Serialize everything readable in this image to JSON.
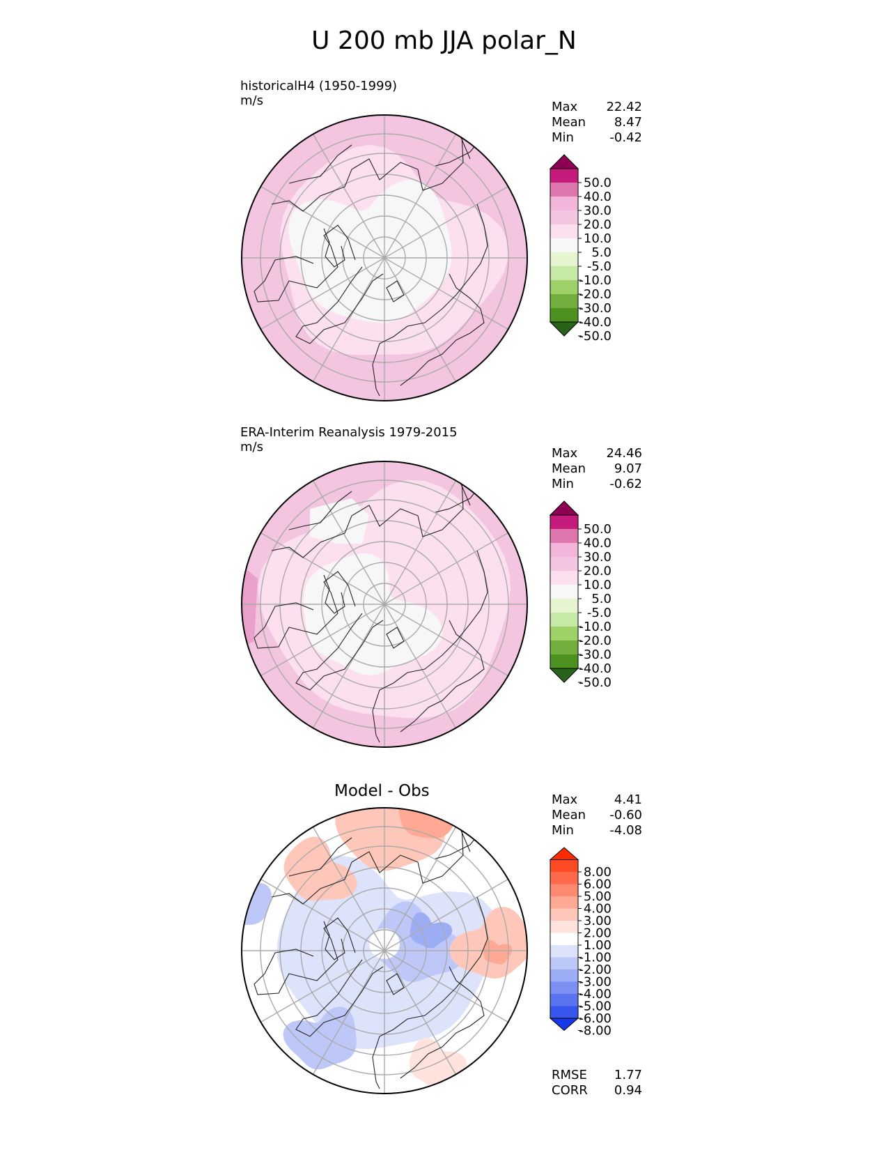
{
  "title": "U 200 mb JJA polar_N",
  "colors": {
    "land_fill": "#f7f7f7",
    "coast": "#222222",
    "grid": "#aaaaaa",
    "rim": "#000000"
  },
  "chart_data": [
    {
      "type": "heatmap",
      "projection": "north-polar-stereographic",
      "panel": "test",
      "title": "historicalH4 (1950-1999)",
      "units": "m/s",
      "stats": [
        {
          "label": "Max",
          "value": "22.42"
        },
        {
          "label": "Mean",
          "value": "8.47"
        },
        {
          "label": "Min",
          "value": "-0.42"
        }
      ],
      "colorbar": {
        "levels": [
          "50.0",
          "40.0",
          "30.0",
          "20.0",
          "10.0",
          "5.0",
          "-5.0",
          "-10.0",
          "-20.0",
          "-30.0",
          "-40.0",
          "-50.0"
        ],
        "colors": [
          "#8e0152",
          "#c51b7d",
          "#de77ae",
          "#f1b6da",
          "#f4c5e1",
          "#fde0ef",
          "#f7f7f7",
          "#e6f5d0",
          "#c7e9a7",
          "#9ed168",
          "#72ae3e",
          "#4d9221",
          "#276419"
        ],
        "extend": "both"
      },
      "field_bands": [
        {
          "range": "10.0 to 20.0",
          "color": "#f4c5e1"
        },
        {
          "range": "5.0 to 10.0",
          "color": "#fde0ef"
        },
        {
          "range": "-5.0 to 5.0",
          "color": "#f7f7f7"
        }
      ]
    },
    {
      "type": "heatmap",
      "projection": "north-polar-stereographic",
      "panel": "reference",
      "title": "ERA-Interim Reanalysis 1979-2015",
      "units": "m/s",
      "stats": [
        {
          "label": "Max",
          "value": "24.46"
        },
        {
          "label": "Mean",
          "value": "9.07"
        },
        {
          "label": "Min",
          "value": "-0.62"
        }
      ],
      "colorbar": {
        "levels": [
          "50.0",
          "40.0",
          "30.0",
          "20.0",
          "10.0",
          "5.0",
          "-5.0",
          "-10.0",
          "-20.0",
          "-30.0",
          "-40.0",
          "-50.0"
        ],
        "colors": [
          "#8e0152",
          "#c51b7d",
          "#de77ae",
          "#f1b6da",
          "#f4c5e1",
          "#fde0ef",
          "#f7f7f7",
          "#e6f5d0",
          "#c7e9a7",
          "#9ed168",
          "#72ae3e",
          "#4d9221",
          "#276419"
        ],
        "extend": "both"
      },
      "field_bands": [
        {
          "range": "20.0 to 30.0",
          "color": "#e9a0cb"
        },
        {
          "range": "10.0 to 20.0",
          "color": "#f4c5e1"
        },
        {
          "range": "5.0 to 10.0",
          "color": "#fde0ef"
        },
        {
          "range": "-5.0 to 5.0",
          "color": "#f7f7f7"
        }
      ]
    },
    {
      "type": "heatmap",
      "projection": "north-polar-stereographic",
      "panel": "difference",
      "title": "Model - Obs",
      "stats": [
        {
          "label": "Max",
          "value": "4.41"
        },
        {
          "label": "Mean",
          "value": "-0.60"
        },
        {
          "label": "Min",
          "value": "-4.08"
        }
      ],
      "metrics": [
        {
          "label": "RMSE",
          "value": "1.77"
        },
        {
          "label": "CORR",
          "value": "0.94"
        }
      ],
      "colorbar": {
        "levels": [
          "8.00",
          "6.00",
          "5.00",
          "4.00",
          "3.00",
          "2.00",
          "1.00",
          "-1.00",
          "-2.00",
          "-3.00",
          "-4.00",
          "-5.00",
          "-6.00",
          "-8.00"
        ],
        "colors": [
          "#ff2a00",
          "#ff4b23",
          "#ff6b4a",
          "#ff8a70",
          "#ffa995",
          "#ffc7b9",
          "#ffe3dc",
          "#ffffff",
          "#dde3fb",
          "#bdc8f8",
          "#9cadf5",
          "#7b90f2",
          "#5a73ef",
          "#3956ec",
          "#1838e9"
        ],
        "extend": "both"
      }
    }
  ]
}
